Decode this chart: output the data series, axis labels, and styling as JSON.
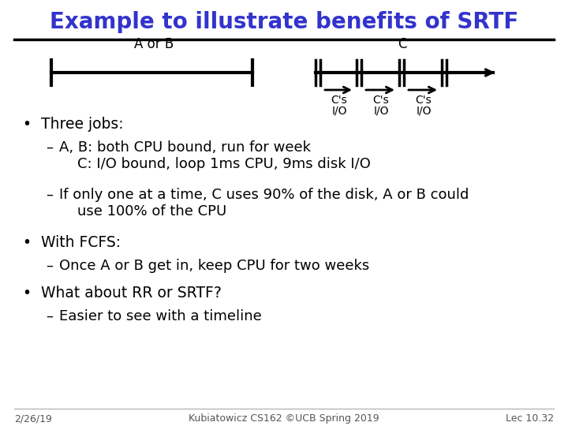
{
  "title": "Example to illustrate benefits of SRTF",
  "title_color": "#3333cc",
  "title_fontsize": 20,
  "bg_color": "#ffffff",
  "timeline_a_label": "A or B",
  "timeline_c_label": "C",
  "bullet_points": [
    {
      "level": 0,
      "bullet": "•",
      "text": "Three jobs:"
    },
    {
      "level": 1,
      "bullet": "–",
      "text": "A, B: both CPU bound, run for week\n    C: I/O bound, loop 1ms CPU, 9ms disk I/O"
    },
    {
      "level": 1,
      "bullet": "–",
      "text": "If only one at a time, C uses 90% of the disk, A or B could\n    use 100% of the CPU"
    },
    {
      "level": 0,
      "bullet": "•",
      "text": "With FCFS:"
    },
    {
      "level": 1,
      "bullet": "–",
      "text": "Once A or B get in, keep CPU for two weeks"
    },
    {
      "level": 0,
      "bullet": "•",
      "text": "What about RR or SRTF?"
    },
    {
      "level": 1,
      "bullet": "–",
      "text": "Easier to see with a timeline"
    }
  ],
  "footer_left": "2/26/19",
  "footer_center": "Kubiatowicz CS162 ©UCB Spring 2019",
  "footer_right": "Lec 10.32",
  "line_color": "#000000",
  "text_color": "#000000",
  "footer_color": "#555555"
}
